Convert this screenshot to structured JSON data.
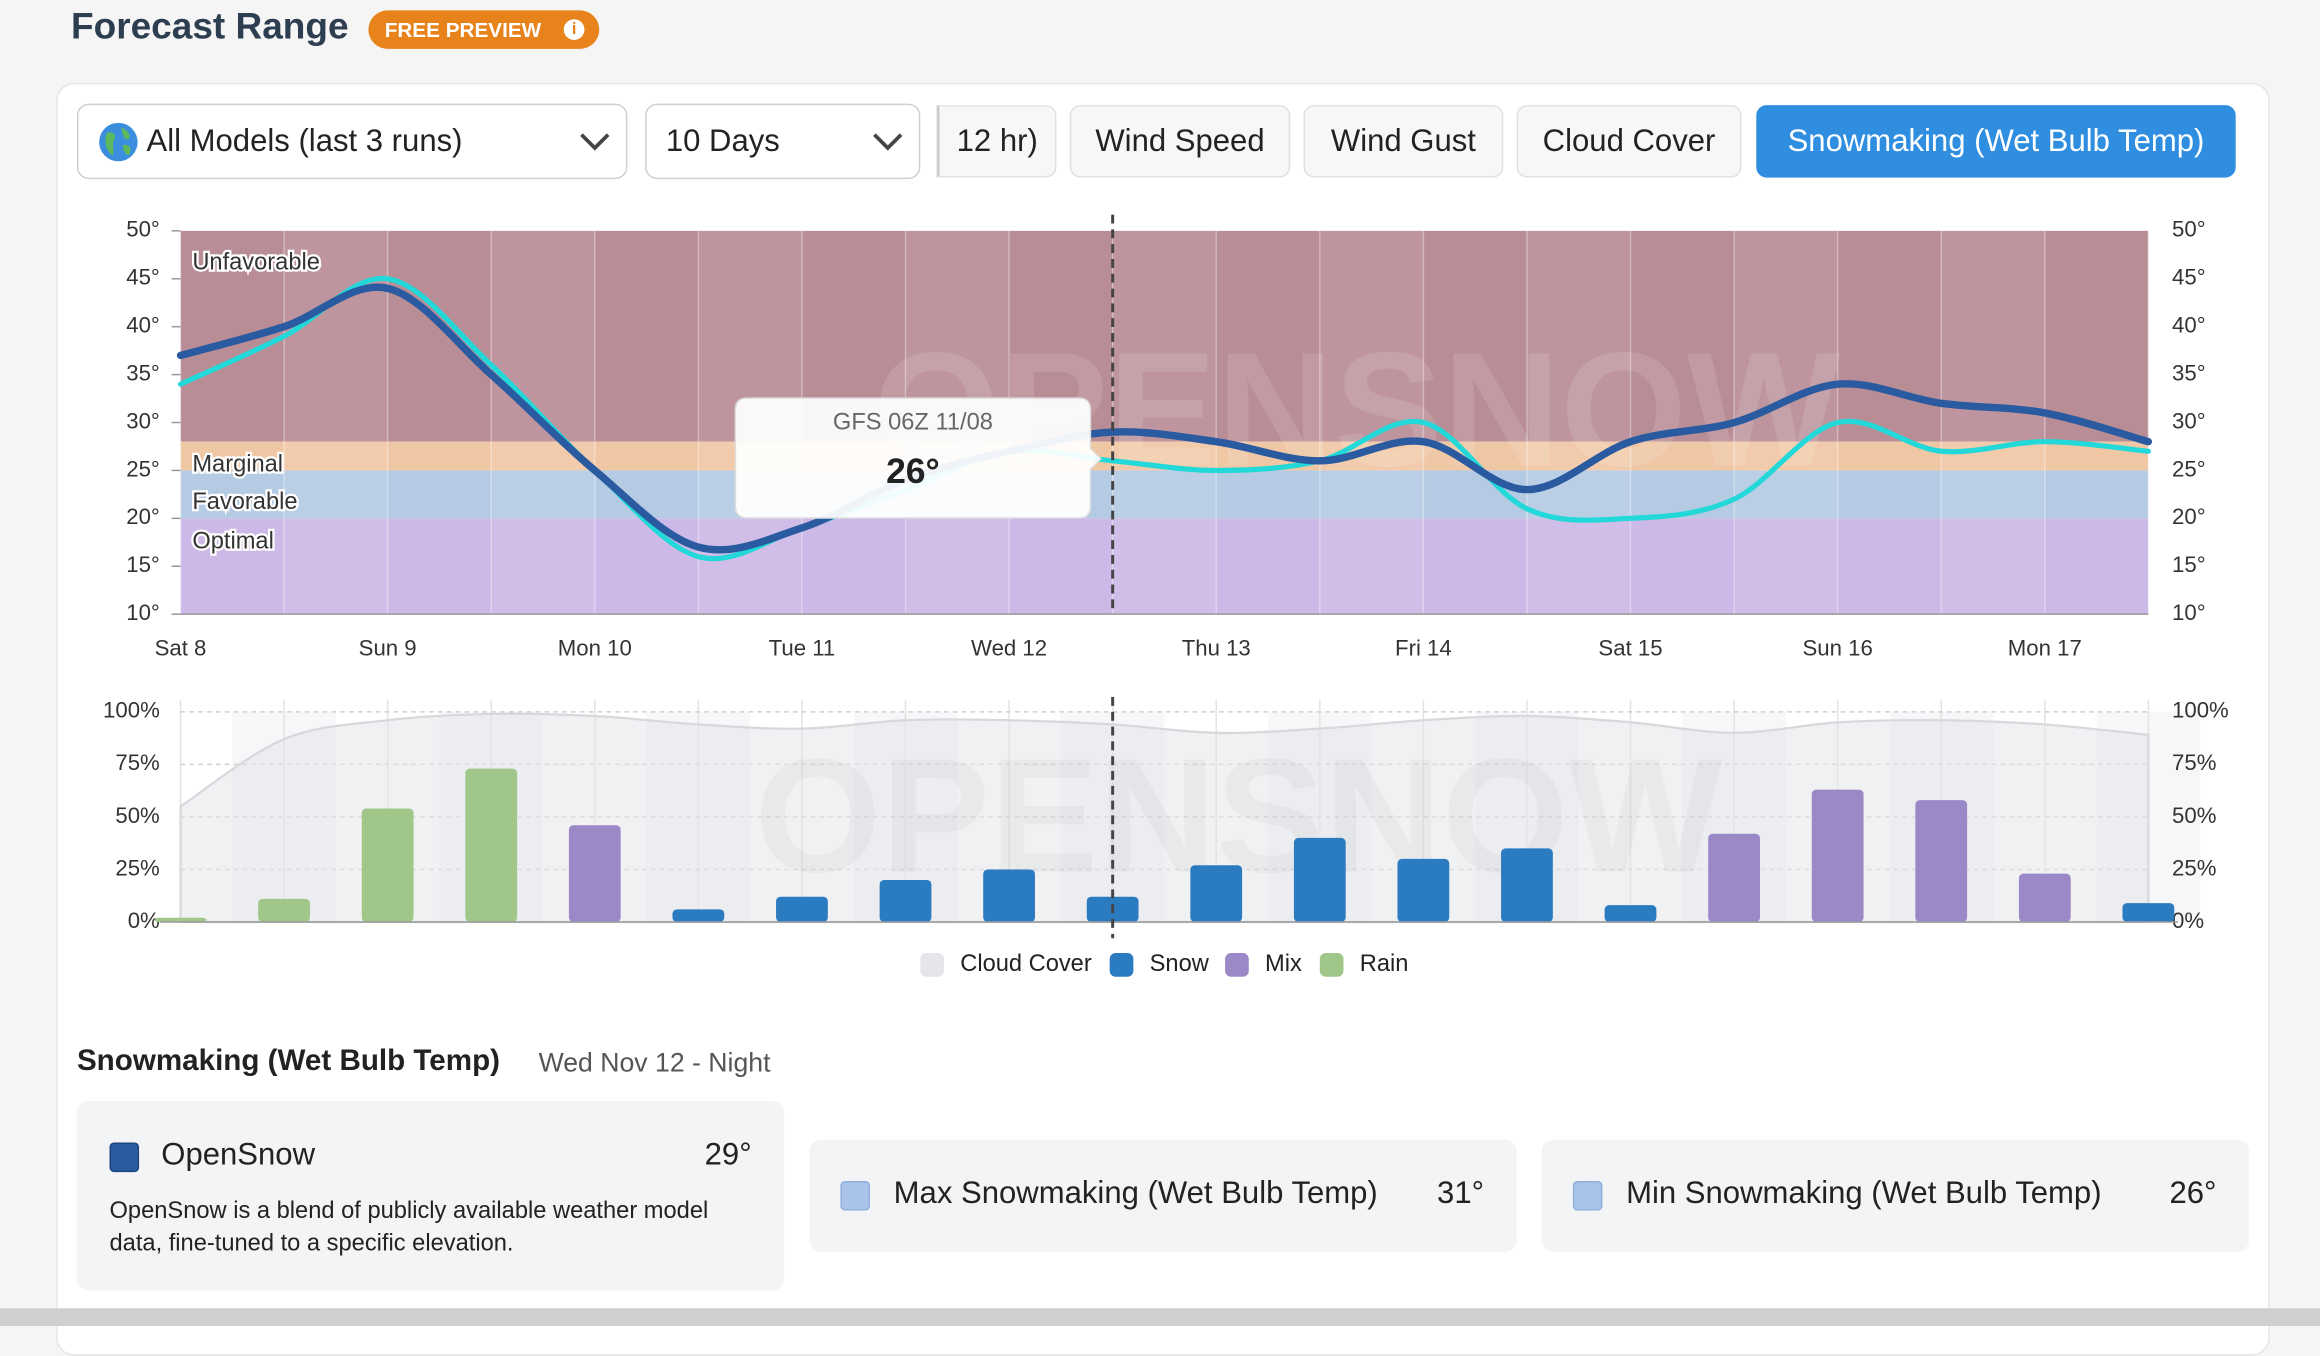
{
  "header": {
    "title": "Forecast Range",
    "badge": "FREE PREVIEW"
  },
  "controls": {
    "model_select": "All Models (last 3 runs)",
    "range_select": "10 Days",
    "tabs": [
      "12 hr)",
      "Wind Speed",
      "Wind Gust",
      "Cloud Cover",
      "Snowmaking (Wet Bulb Temp)"
    ],
    "active_tab": 4
  },
  "chart_data": [
    {
      "type": "line",
      "watermark": "OPENSNOW",
      "x_labels": [
        "Sat 8",
        null,
        "Sun 9",
        null,
        "Mon 10",
        null,
        "Tue 11",
        null,
        "Wed 12",
        null,
        "Thu 13",
        null,
        "Fri 14",
        null,
        "Sat 15",
        null,
        "Sun 16",
        null,
        "Mon 17",
        null
      ],
      "ylim": [
        10,
        50
      ],
      "yticks": [
        {
          "value": 10,
          "label": "10°"
        },
        {
          "value": 15,
          "label": "15°"
        },
        {
          "value": 20,
          "label": "20°"
        },
        {
          "value": 25,
          "label": "25°"
        },
        {
          "value": 30,
          "label": "30°"
        },
        {
          "value": 35,
          "label": "35°"
        },
        {
          "value": 40,
          "label": "40°"
        },
        {
          "value": 45,
          "label": "45°"
        },
        {
          "value": 50,
          "label": "50°"
        }
      ],
      "zones": [
        {
          "label": "Unfavorable",
          "from": 28,
          "to": 50,
          "color": "#b98d96"
        },
        {
          "label": "Marginal",
          "from": 25,
          "to": 28,
          "color": "#f0c7a4"
        },
        {
          "label": "Favorable",
          "from": 20,
          "to": 25,
          "color": "#b5cbe3"
        },
        {
          "label": "Optimal",
          "from": 10,
          "to": 20,
          "color": "#cdb9e7"
        }
      ],
      "series": [
        {
          "name": "OpenSnow",
          "color": "#2a5aa0",
          "values": [
            37,
            40,
            44,
            35,
            25,
            17,
            19,
            24,
            27,
            29,
            28,
            26,
            28,
            23,
            28,
            30,
            34,
            32,
            31,
            28
          ]
        },
        {
          "name": "GFS 06Z 11/08",
          "color": "#22d8d8",
          "values": [
            34,
            39,
            45,
            36,
            25,
            16,
            19,
            23,
            27,
            26,
            25,
            26,
            30,
            21,
            20,
            22,
            30,
            27,
            28,
            27
          ]
        }
      ],
      "highlight_index": 9,
      "tooltip_label": "26°"
    },
    {
      "type": "bar",
      "watermark": "OPENSNOW",
      "ylim": [
        0,
        100
      ],
      "yticks": [
        {
          "value": 0,
          "label": "0%"
        },
        {
          "value": 25,
          "label": "25%"
        },
        {
          "value": 50,
          "label": "50%"
        },
        {
          "value": 75,
          "label": "75%"
        },
        {
          "value": 100,
          "label": "100%"
        }
      ],
      "area": {
        "name": "Cloud Cover",
        "color": "#e4e6ea",
        "values": [
          55,
          87,
          96,
          99,
          98,
          94,
          92,
          96,
          96,
          94,
          90,
          92,
          96,
          98,
          95,
          90,
          95,
          96,
          94,
          89
        ]
      },
      "series": [
        {
          "name": "Snow",
          "color": "#2b7bc0",
          "values": [
            null,
            null,
            null,
            null,
            null,
            6,
            12,
            20,
            25,
            12,
            27,
            40,
            30,
            35,
            8,
            null,
            null,
            null,
            null,
            9
          ]
        },
        {
          "name": "Mix",
          "color": "#9b88c7",
          "values": [
            null,
            null,
            null,
            null,
            46,
            null,
            null,
            null,
            null,
            null,
            null,
            null,
            null,
            null,
            null,
            42,
            63,
            58,
            23,
            null
          ]
        },
        {
          "name": "Rain",
          "color": "#a0c689",
          "values": [
            2,
            11,
            54,
            73,
            null,
            null,
            null,
            null,
            null,
            null,
            null,
            null,
            null,
            null,
            null,
            null,
            null,
            null,
            null,
            null
          ]
        }
      ],
      "legend": "bottom"
    }
  ],
  "details": {
    "title": "Snowmaking (Wet Bulb Temp)",
    "period": "Wed Nov 12 - Night",
    "cards": [
      {
        "name": "OpenSnow",
        "value": "29°",
        "description": "OpenSnow is a blend of publicly available weather model data, fine-tuned to a specific elevation."
      },
      {
        "name": "Max Snowmaking (Wet Bulb Temp)",
        "value": "31°"
      },
      {
        "name": "Min Snowmaking (Wet Bulb Temp)",
        "value": "26°"
      }
    ]
  }
}
